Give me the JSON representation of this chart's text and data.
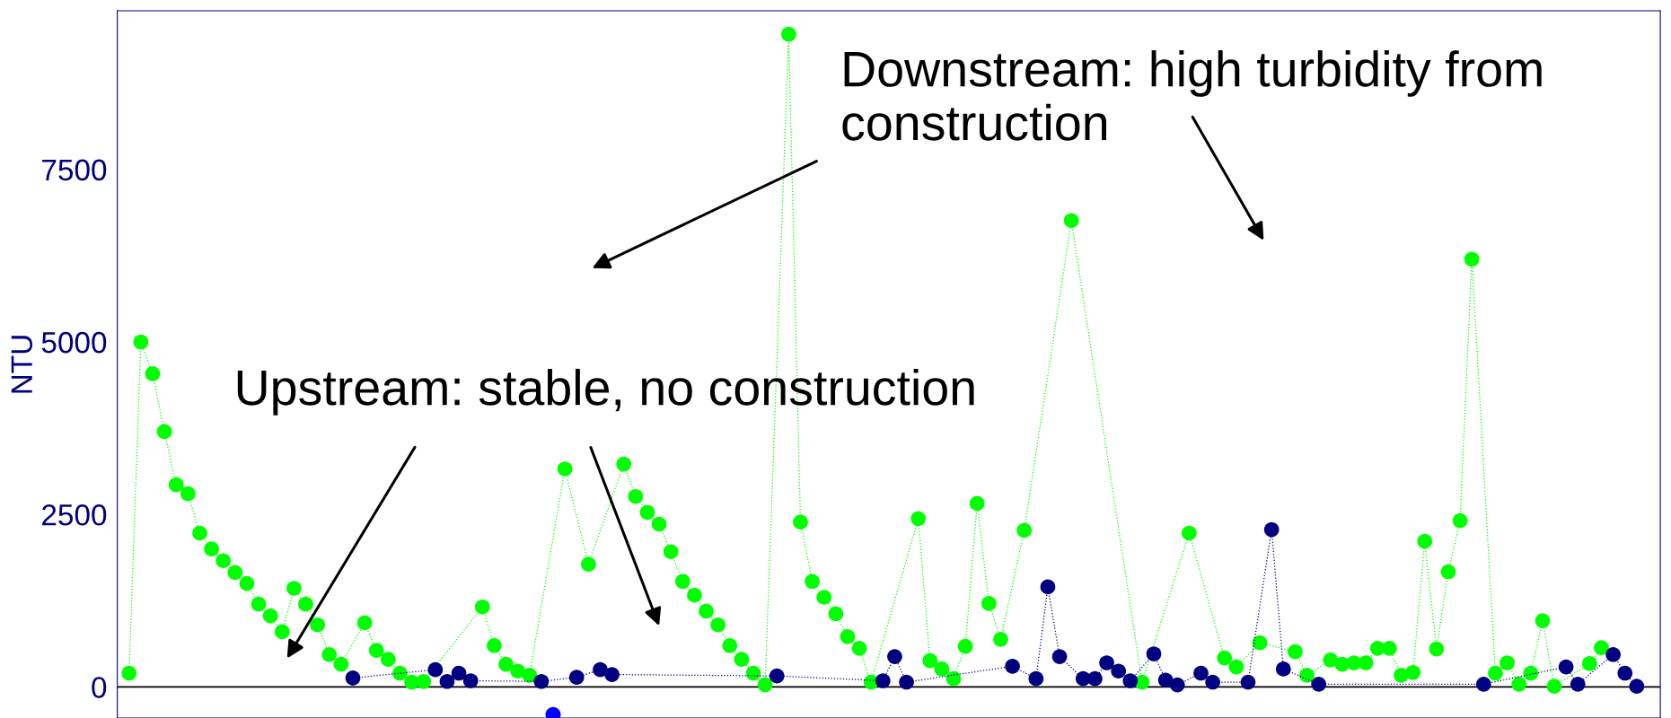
{
  "chart_data": {
    "type": "line",
    "ylabel": "NTU",
    "ylim": [
      -450,
      9800
    ],
    "categories": [
      null,
      null,
      null,
      null,
      null,
      null,
      null,
      null,
      null,
      null,
      null,
      null,
      null,
      null,
      null,
      null,
      null,
      null,
      null,
      null,
      null,
      null,
      null,
      null,
      null,
      null,
      null,
      null,
      null,
      null,
      null,
      null,
      null,
      null,
      null,
      null,
      null,
      null,
      null,
      null,
      null,
      null,
      null,
      null,
      null,
      null,
      null,
      null,
      null,
      null,
      null,
      null,
      null,
      null,
      null,
      null,
      null,
      null,
      null,
      null,
      null,
      null,
      null,
      null,
      null,
      null,
      null,
      null,
      null,
      null,
      null,
      null,
      null,
      null,
      null,
      null,
      null,
      null,
      null,
      null,
      null,
      null,
      null,
      null,
      null,
      null,
      null,
      null,
      null,
      null,
      null,
      null,
      null,
      null,
      null,
      null,
      null,
      null,
      null,
      null,
      null,
      null,
      null,
      null,
      null,
      null,
      null,
      null,
      null,
      null,
      null,
      null,
      null,
      null,
      null,
      null,
      null,
      null,
      null,
      null,
      null,
      null,
      null,
      null,
      null,
      null,
      null,
      null,
      null
    ],
    "yticks": [
      0,
      2500,
      5000,
      7500
    ],
    "tick_labels": "y",
    "marker": "circle",
    "line_style": "dotted",
    "ref_lines": [
      {
        "axis": "y",
        "value": 0,
        "label": null,
        "color": "#000000",
        "line_style": "solid"
      }
    ],
    "annotations": [
      "Downstream: high turbidity from construction",
      "Upstream: stable, no construction"
    ],
    "series": [
      {
        "color": "#00ff00",
        "values": [
          200,
          5000,
          4540,
          3700,
          2930,
          2800,
          2230,
          2000,
          1830,
          1660,
          1500,
          1200,
          1030,
          800,
          1430,
          1200,
          900,
          470,
          330,
          null,
          930,
          530,
          400,
          200,
          70,
          80,
          null,
          null,
          null,
          null,
          1160,
          600,
          330,
          230,
          170,
          null,
          null,
          3160,
          null,
          1780,
          null,
          null,
          3230,
          2760,
          2530,
          2360,
          1960,
          1530,
          1330,
          1100,
          900,
          600,
          400,
          200,
          30,
          null,
          9460,
          2390,
          1530,
          1300,
          1060,
          730,
          560,
          70,
          null,
          null,
          null,
          2440,
          380,
          260,
          120,
          590,
          2660,
          1210,
          690,
          null,
          2270,
          null,
          null,
          null,
          6760,
          null,
          null,
          null,
          null,
          null,
          70,
          null,
          null,
          null,
          2230,
          null,
          null,
          420,
          290,
          null,
          640,
          null,
          null,
          510,
          170,
          null,
          390,
          330,
          350,
          350,
          560,
          560,
          170,
          210,
          2110,
          550,
          1670,
          2410,
          6200,
          null,
          200,
          350,
          40,
          200,
          960,
          10,
          null,
          null,
          340,
          570,
          null,
          null,
          null
        ]
      },
      {
        "color": "#000080",
        "values": [
          null,
          null,
          null,
          null,
          null,
          null,
          null,
          null,
          null,
          null,
          null,
          null,
          null,
          null,
          null,
          null,
          null,
          null,
          null,
          130,
          null,
          null,
          null,
          null,
          null,
          null,
          250,
          80,
          200,
          90,
          null,
          null,
          null,
          null,
          null,
          80,
          null,
          null,
          140,
          null,
          250,
          180,
          null,
          null,
          null,
          null,
          null,
          null,
          null,
          null,
          null,
          null,
          null,
          null,
          null,
          160,
          null,
          null,
          null,
          null,
          null,
          null,
          null,
          null,
          90,
          440,
          70,
          null,
          null,
          null,
          null,
          null,
          null,
          null,
          null,
          300,
          null,
          120,
          1450,
          440,
          null,
          120,
          120,
          350,
          230,
          90,
          null,
          480,
          100,
          30,
          null,
          200,
          70,
          null,
          null,
          70,
          null,
          2280,
          260,
          null,
          null,
          40,
          null,
          null,
          null,
          null,
          null,
          null,
          null,
          null,
          null,
          null,
          null,
          null,
          null,
          40,
          null,
          null,
          null,
          null,
          null,
          null,
          290,
          40,
          null,
          null,
          470,
          200,
          10
        ]
      },
      {
        "type": "scatter",
        "color": "#0000ff",
        "values": [
          null,
          null,
          null,
          null,
          null,
          null,
          null,
          null,
          null,
          null,
          null,
          null,
          null,
          null,
          null,
          null,
          null,
          null,
          null,
          null,
          null,
          null,
          null,
          null,
          null,
          null,
          null,
          null,
          null,
          null,
          null,
          null,
          null,
          null,
          null,
          null,
          -400,
          null,
          null,
          null,
          null,
          null,
          null,
          null,
          null,
          null,
          null,
          null,
          null,
          null,
          null,
          null,
          null,
          null,
          null,
          null,
          null,
          null,
          null,
          null,
          null,
          null,
          null,
          null,
          null,
          null,
          null,
          null,
          null,
          null,
          null,
          null,
          null,
          null,
          null,
          null,
          null,
          null,
          null,
          null,
          null,
          null,
          null,
          null,
          null,
          null,
          null,
          null,
          null,
          null,
          null,
          null,
          null,
          null,
          null,
          null,
          null,
          null,
          null,
          null,
          null,
          null,
          null,
          null,
          null,
          null,
          null,
          null,
          null,
          null,
          null,
          null,
          null,
          null,
          null,
          null,
          null,
          null,
          null,
          null,
          null,
          null,
          null,
          null,
          null,
          null,
          null,
          null,
          null
        ]
      }
    ]
  }
}
